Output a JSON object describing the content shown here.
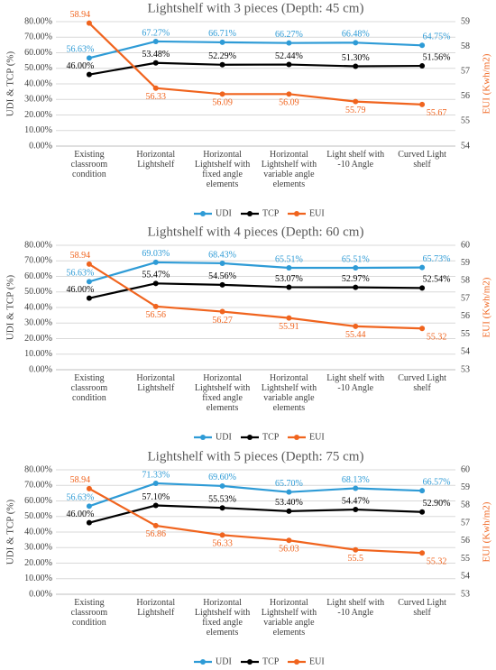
{
  "chart_data": [
    {
      "type": "line",
      "title": "Lightshelf with 3 pieces (Depth: 45 cm)",
      "y_label": "UDI & TCP (%)",
      "y2_label": "EUI (Kwh/m2)",
      "categories": [
        "Existing classroom condition",
        "Horizontal Lightshelf",
        "Horizontal Lightshelf with fixed angle elements",
        "Horizontal Lightshelf with variable angle elements",
        "Light shelf with -10 Angle",
        "Curved Light shelf"
      ],
      "series": [
        {
          "name": "UDI",
          "color": "#2e9bd6",
          "values": [
            56.63,
            67.27,
            66.71,
            66.27,
            66.48,
            64.75
          ],
          "value_labels": [
            "56.63%",
            "67.27%",
            "66.71%",
            "66.27%",
            "66.48%",
            "64.75%"
          ]
        },
        {
          "name": "TCP",
          "color": "#000000",
          "values": [
            46.0,
            53.48,
            52.29,
            52.44,
            51.3,
            51.56
          ],
          "value_labels": [
            "46.00%",
            "53.48%",
            "52.29%",
            "52.44%",
            "51.30%",
            "51.56%"
          ]
        },
        {
          "name": "EUI",
          "color": "#f0641e",
          "axis": "y2",
          "values": [
            58.94,
            56.33,
            56.09,
            56.09,
            55.79,
            55.67
          ]
        }
      ],
      "ylim": [
        0,
        80
      ],
      "yticks": [
        {
          "value": 0,
          "label": "0.00%"
        },
        {
          "value": 10,
          "label": "10.00%"
        },
        {
          "value": 20,
          "label": "20.00%"
        },
        {
          "value": 30,
          "label": "30.00%"
        },
        {
          "value": 40,
          "label": "40.00%"
        },
        {
          "value": 50,
          "label": "50.00%"
        },
        {
          "value": 60,
          "label": "60.00%"
        },
        {
          "value": 70,
          "label": "70.00%"
        },
        {
          "value": 80,
          "label": "80.00%"
        }
      ],
      "y2lim": [
        54,
        59
      ],
      "y2ticks": [
        54,
        55,
        56,
        57,
        58,
        59
      ],
      "grid": true
    },
    {
      "type": "line",
      "title": "Lightshelf with 4 pieces (Depth: 60 cm)",
      "y_label": "UDI & TCP (%)",
      "y2_label": "EUI (Kwh/m2)",
      "categories": [
        "Existing classroom condition",
        "Horizontal Lightshelf",
        "Horizontal Lightshelf with fixed angle elements",
        "Horizontal Lightshelf with variable angle elements",
        "Light shelf with -10 Angle",
        "Curved Light shelf"
      ],
      "series": [
        {
          "name": "UDI",
          "color": "#2e9bd6",
          "values": [
            56.63,
            69.03,
            68.43,
            65.51,
            65.51,
            65.73
          ],
          "value_labels": [
            "56.63%",
            "69.03%",
            "68.43%",
            "65.51%",
            "65.51%",
            "65.73%"
          ]
        },
        {
          "name": "TCP",
          "color": "#000000",
          "values": [
            46.0,
            55.47,
            54.56,
            53.07,
            52.97,
            52.54
          ],
          "value_labels": [
            "46.00%",
            "55.47%",
            "54.56%",
            "53.07%",
            "52.97%",
            "52.54%"
          ]
        },
        {
          "name": "EUI",
          "color": "#f0641e",
          "axis": "y2",
          "values": [
            58.94,
            56.56,
            56.27,
            55.91,
            55.44,
            55.32
          ]
        }
      ],
      "ylim": [
        0,
        80
      ],
      "yticks": [
        {
          "value": 0,
          "label": "0.00%"
        },
        {
          "value": 10,
          "label": "10.00%"
        },
        {
          "value": 20,
          "label": "20.00%"
        },
        {
          "value": 30,
          "label": "30.00%"
        },
        {
          "value": 40,
          "label": "40.00%"
        },
        {
          "value": 50,
          "label": "50.00%"
        },
        {
          "value": 60,
          "label": "60.00%"
        },
        {
          "value": 70,
          "label": "70.00%"
        },
        {
          "value": 80,
          "label": "80.00%"
        }
      ],
      "y2lim": [
        53,
        60
      ],
      "y2ticks": [
        53,
        54,
        55,
        56,
        57,
        58,
        59,
        60
      ],
      "grid": true
    },
    {
      "type": "line",
      "title": "Lightshelf with 5 pieces (Depth: 75 cm)",
      "y_label": "UDI & TCP (%)",
      "y2_label": "EUI (Kwh/m2)",
      "categories": [
        "Existing classroom condition",
        "Horizontal Lightshelf",
        "Horizontal Lightshelf with fixed angle elements",
        "Horizontal Lightshelf with variable angle elements",
        "Light shelf with -10 Angle",
        "Curved Light shelf"
      ],
      "series": [
        {
          "name": "UDI",
          "color": "#2e9bd6",
          "values": [
            56.63,
            71.33,
            69.6,
            65.7,
            68.13,
            66.57
          ],
          "value_labels": [
            "56.63%",
            "71.33%",
            "69.60%",
            "65.70%",
            "68.13%",
            "66.57%"
          ]
        },
        {
          "name": "TCP",
          "color": "#000000",
          "values": [
            46.0,
            57.1,
            55.53,
            53.4,
            54.47,
            52.9
          ],
          "value_labels": [
            "46.00%",
            "57.10%",
            "55.53%",
            "53.40%",
            "54.47%",
            "52.90%"
          ]
        },
        {
          "name": "EUI",
          "color": "#f0641e",
          "axis": "y2",
          "values": [
            58.94,
            56.86,
            56.33,
            56.03,
            55.5,
            55.32
          ]
        }
      ],
      "ylim": [
        0,
        80
      ],
      "yticks": [
        {
          "value": 0,
          "label": "0.00%"
        },
        {
          "value": 10,
          "label": "10.00%"
        },
        {
          "value": 20,
          "label": "20.00%"
        },
        {
          "value": 30,
          "label": "30.00%"
        },
        {
          "value": 40,
          "label": "40.00%"
        },
        {
          "value": 50,
          "label": "50.00%"
        },
        {
          "value": 60,
          "label": "60.00%"
        },
        {
          "value": 70,
          "label": "70.00%"
        },
        {
          "value": 80,
          "label": "80.00%"
        }
      ],
      "y2lim": [
        53,
        60
      ],
      "y2ticks": [
        53,
        54,
        55,
        56,
        57,
        58,
        59,
        60
      ],
      "grid": true
    }
  ]
}
